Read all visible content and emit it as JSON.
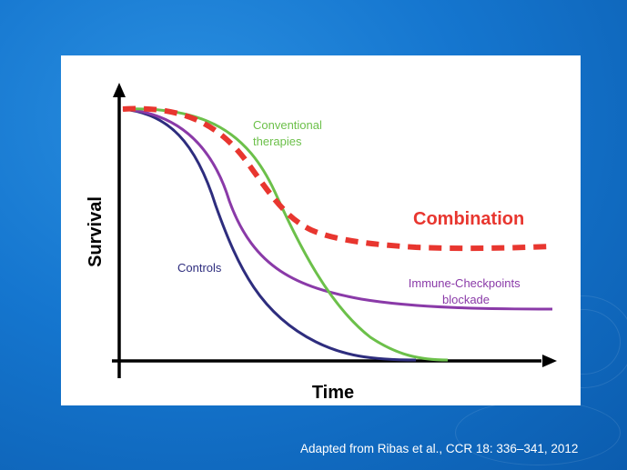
{
  "figure": {
    "y_axis_label": "Survival",
    "x_axis_label": "Time",
    "curves": [
      {
        "id": "controls",
        "label": "Controls",
        "color": "#2e2d7e"
      },
      {
        "id": "conventional",
        "label_lines": [
          "Conventional",
          "therapies"
        ],
        "color": "#6cc04a"
      },
      {
        "id": "immune",
        "label_lines": [
          "Immune-Checkpoints",
          "blockade"
        ],
        "color": "#8a3aa8"
      },
      {
        "id": "combination",
        "label": "Combination",
        "color": "#e8362f",
        "style": "dashed"
      }
    ]
  },
  "footer": {
    "citation": "Adapted from Ribas et al., CCR 18: 336–341, 2012"
  }
}
